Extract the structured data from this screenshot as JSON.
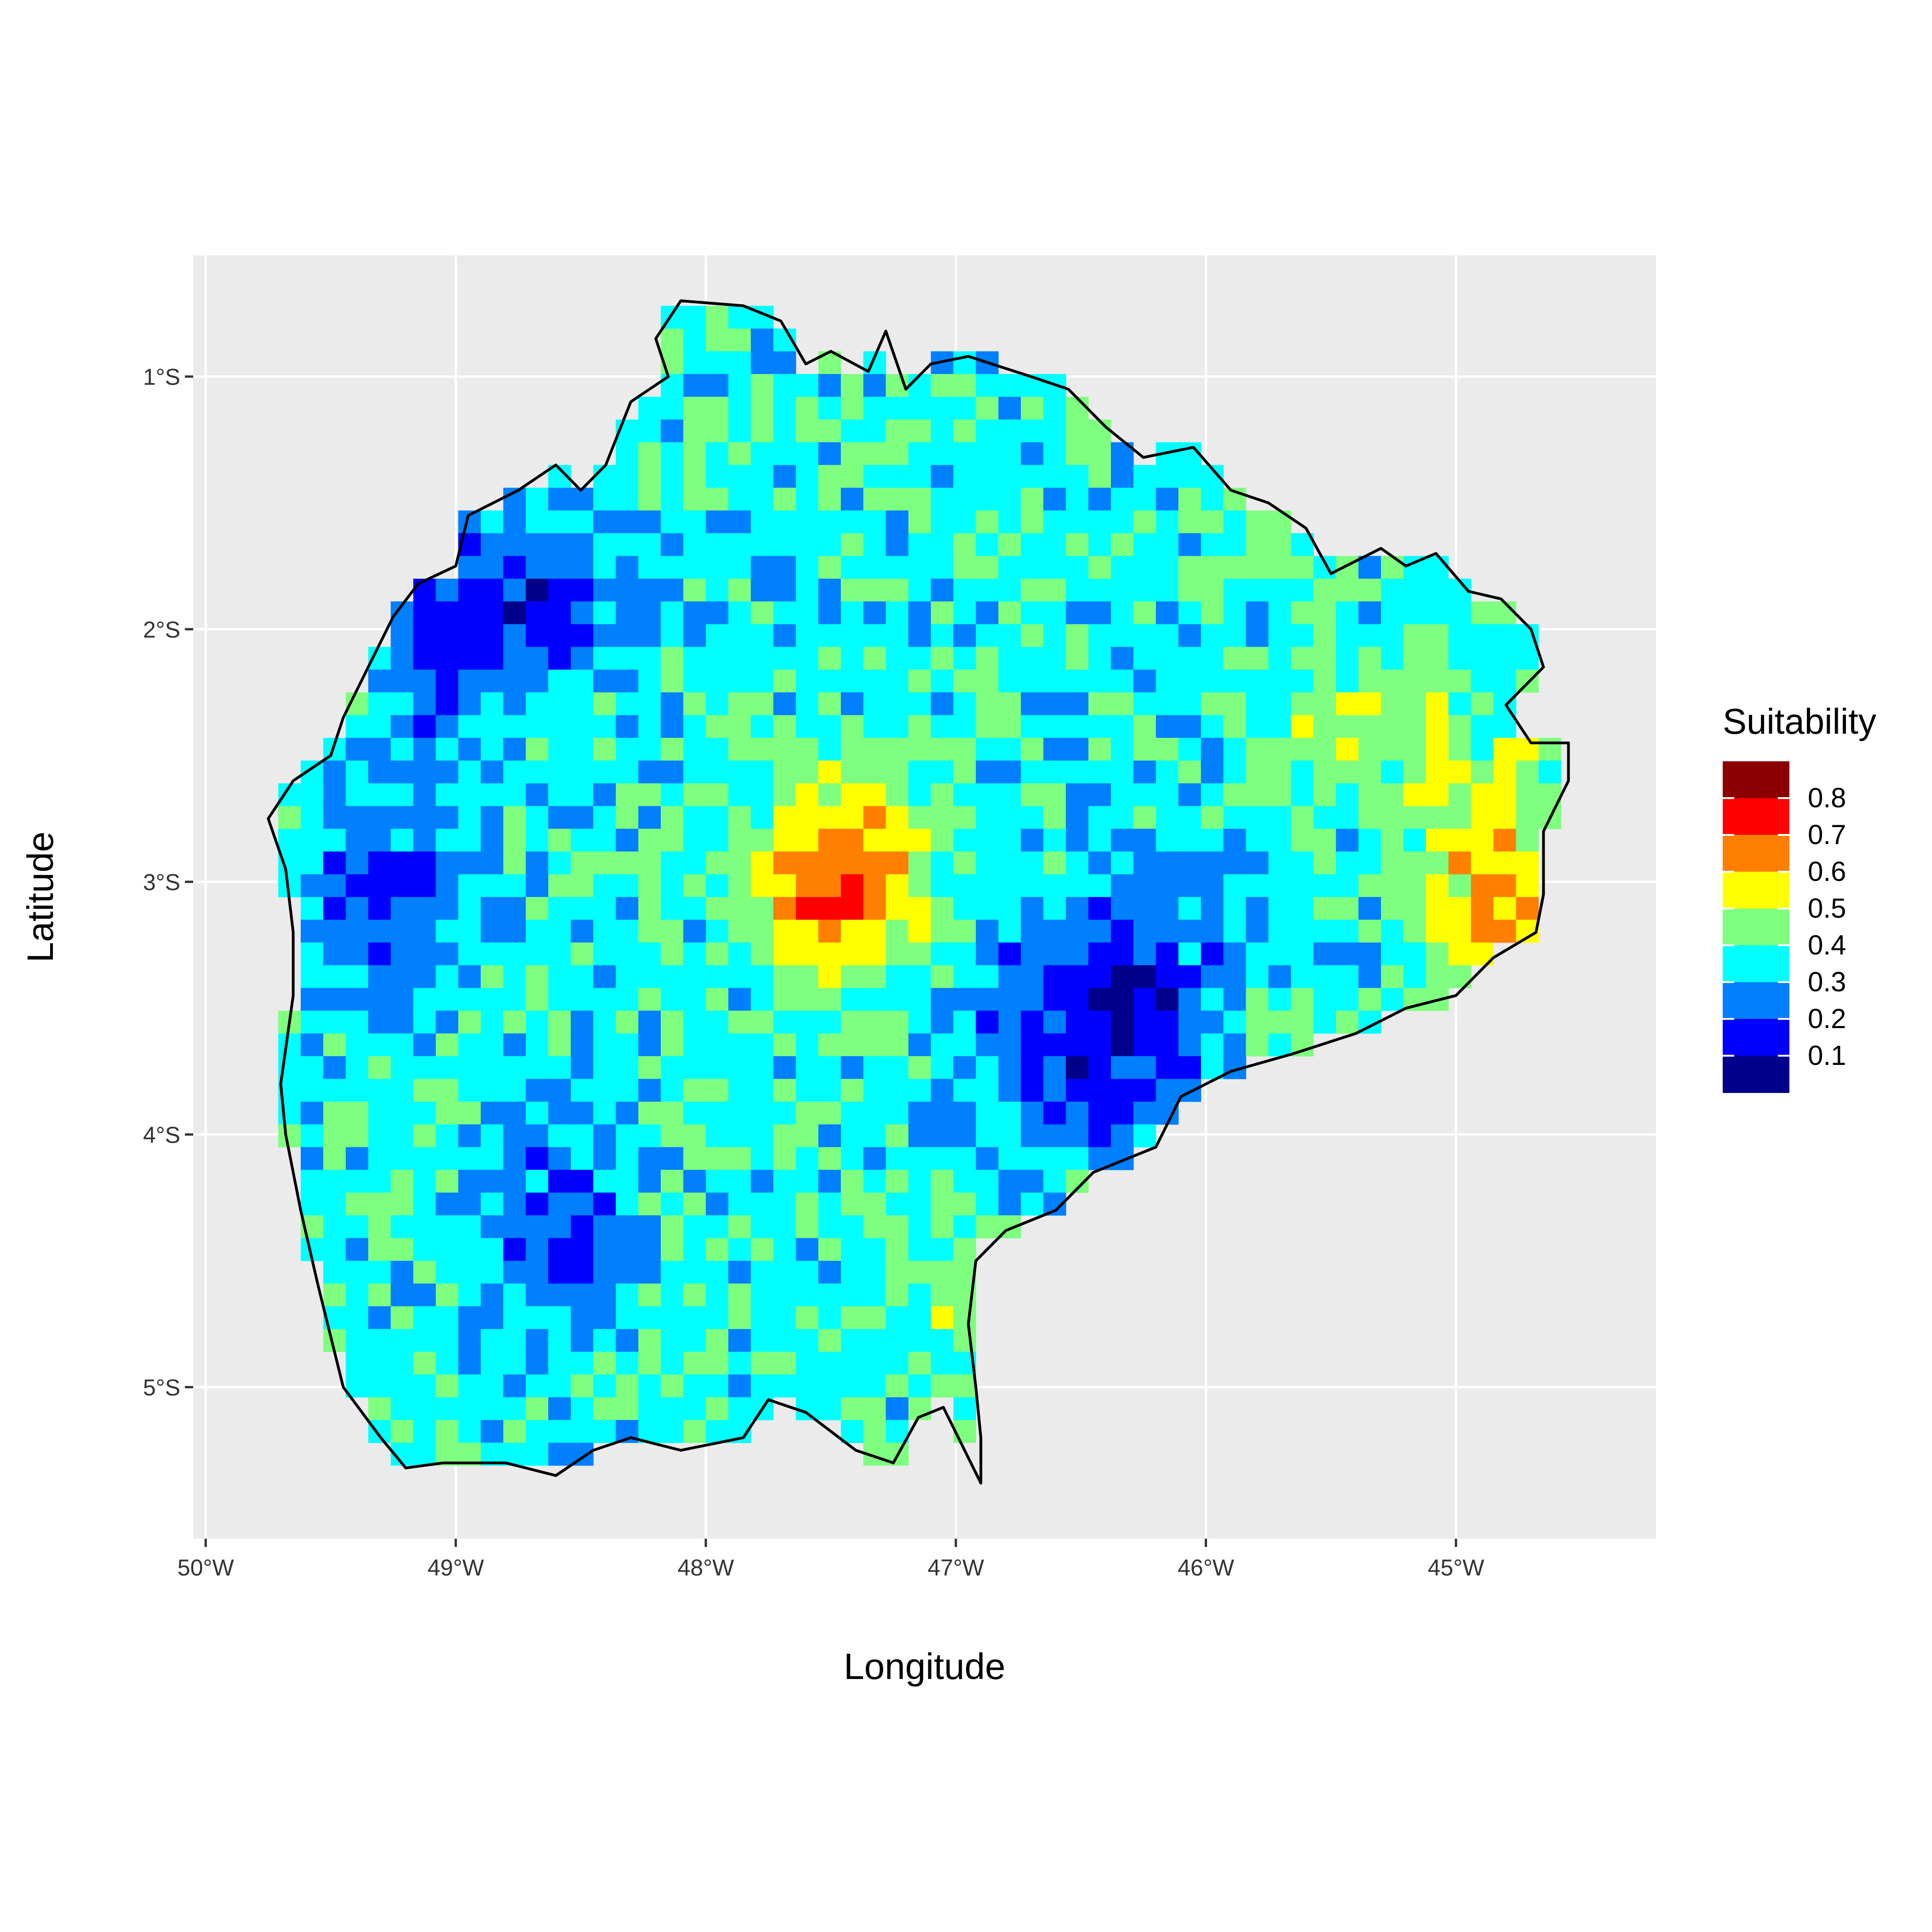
{
  "chart_data": {
    "type": "heatmap",
    "subtype": "raster map with region outline",
    "title": "",
    "xlabel": "Longitude",
    "ylabel": "Latitude",
    "xlim": [
      -50.05,
      -44.2
    ],
    "ylim": [
      -5.6,
      -0.52
    ],
    "x_ticks": [
      {
        "value": -50,
        "label": "50°W"
      },
      {
        "value": -49,
        "label": "49°W"
      },
      {
        "value": -48,
        "label": "48°W"
      },
      {
        "value": -47,
        "label": "47°W"
      },
      {
        "value": -46,
        "label": "46°W"
      },
      {
        "value": -45,
        "label": "45°W"
      }
    ],
    "y_ticks": [
      {
        "value": -1,
        "label": "1°S"
      },
      {
        "value": -2,
        "label": "2°S"
      },
      {
        "value": -3,
        "label": "3°S"
      },
      {
        "value": -4,
        "label": "4°S"
      },
      {
        "value": -5,
        "label": "5°S"
      }
    ],
    "grid": true,
    "panel_background": "#ebebeb",
    "grid_color": "#ffffff",
    "cell_size_deg": 0.09,
    "legend": {
      "title": "Suitability",
      "placement": "right",
      "breaks": [
        0.1,
        0.2,
        0.3,
        0.4,
        0.5,
        0.6,
        0.7,
        0.8
      ],
      "labels": [
        "0.8",
        "0.7",
        "0.6",
        "0.5",
        "0.4",
        "0.3",
        "0.2",
        "0.1"
      ],
      "colors": [
        "#8b0000",
        "#ff0000",
        "#ff7f00",
        "#ffff00",
        "#7fff7f",
        "#00ffff",
        "#007fff",
        "#0000ff",
        "#00008b"
      ]
    },
    "outline_lonlat": [
      [
        -48.1,
        -0.7
      ],
      [
        -47.85,
        -0.72
      ],
      [
        -47.7,
        -0.78
      ],
      [
        -47.6,
        -0.95
      ],
      [
        -47.5,
        -0.9
      ],
      [
        -47.35,
        -0.98
      ],
      [
        -47.28,
        -0.82
      ],
      [
        -47.2,
        -1.05
      ],
      [
        -47.1,
        -0.95
      ],
      [
        -46.95,
        -0.92
      ],
      [
        -46.7,
        -1.0
      ],
      [
        -46.55,
        -1.05
      ],
      [
        -46.4,
        -1.2
      ],
      [
        -46.25,
        -1.32
      ],
      [
        -46.05,
        -1.28
      ],
      [
        -45.9,
        -1.45
      ],
      [
        -45.75,
        -1.5
      ],
      [
        -45.6,
        -1.6
      ],
      [
        -45.5,
        -1.78
      ],
      [
        -45.3,
        -1.68
      ],
      [
        -45.2,
        -1.75
      ],
      [
        -45.08,
        -1.7
      ],
      [
        -44.95,
        -1.85
      ],
      [
        -44.82,
        -1.88
      ],
      [
        -44.7,
        -2.0
      ],
      [
        -44.65,
        -2.15
      ],
      [
        -44.8,
        -2.3
      ],
      [
        -44.7,
        -2.45
      ],
      [
        -44.55,
        -2.45
      ],
      [
        -44.55,
        -2.6
      ],
      [
        -44.65,
        -2.8
      ],
      [
        -44.65,
        -3.05
      ],
      [
        -44.68,
        -3.2
      ],
      [
        -44.85,
        -3.3
      ],
      [
        -45.0,
        -3.45
      ],
      [
        -45.2,
        -3.5
      ],
      [
        -45.4,
        -3.6
      ],
      [
        -45.65,
        -3.68
      ],
      [
        -45.9,
        -3.75
      ],
      [
        -46.1,
        -3.85
      ],
      [
        -46.2,
        -4.05
      ],
      [
        -46.45,
        -4.15
      ],
      [
        -46.6,
        -4.3
      ],
      [
        -46.8,
        -4.38
      ],
      [
        -46.92,
        -4.5
      ],
      [
        -46.95,
        -4.75
      ],
      [
        -46.92,
        -5.0
      ],
      [
        -46.9,
        -5.2
      ],
      [
        -46.9,
        -5.38
      ],
      [
        -47.05,
        -5.08
      ],
      [
        -47.15,
        -5.12
      ],
      [
        -47.25,
        -5.3
      ],
      [
        -47.4,
        -5.25
      ],
      [
        -47.6,
        -5.1
      ],
      [
        -47.75,
        -5.05
      ],
      [
        -47.85,
        -5.2
      ],
      [
        -48.1,
        -5.25
      ],
      [
        -48.3,
        -5.2
      ],
      [
        -48.45,
        -5.25
      ],
      [
        -48.6,
        -5.35
      ],
      [
        -48.8,
        -5.3
      ],
      [
        -49.05,
        -5.3
      ],
      [
        -49.2,
        -5.32
      ],
      [
        -49.3,
        -5.2
      ],
      [
        -49.45,
        -5.0
      ],
      [
        -49.55,
        -4.6
      ],
      [
        -49.62,
        -4.3
      ],
      [
        -49.68,
        -4.0
      ],
      [
        -49.7,
        -3.8
      ],
      [
        -49.65,
        -3.45
      ],
      [
        -49.65,
        -3.2
      ],
      [
        -49.68,
        -2.95
      ],
      [
        -49.75,
        -2.75
      ],
      [
        -49.65,
        -2.6
      ],
      [
        -49.5,
        -2.5
      ],
      [
        -49.45,
        -2.35
      ],
      [
        -49.35,
        -2.15
      ],
      [
        -49.25,
        -1.95
      ],
      [
        -49.15,
        -1.82
      ],
      [
        -49.0,
        -1.75
      ],
      [
        -48.95,
        -1.55
      ],
      [
        -48.75,
        -1.45
      ],
      [
        -48.6,
        -1.35
      ],
      [
        -48.5,
        -1.45
      ],
      [
        -48.4,
        -1.35
      ],
      [
        -48.3,
        -1.1
      ],
      [
        -48.15,
        -1.0
      ],
      [
        -48.2,
        -0.85
      ],
      [
        -48.1,
        -0.7
      ]
    ]
  }
}
